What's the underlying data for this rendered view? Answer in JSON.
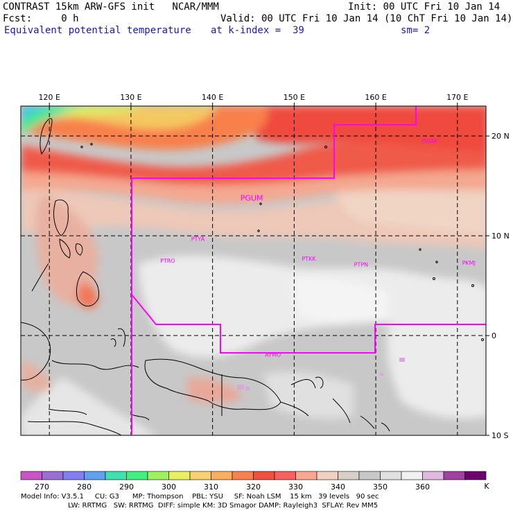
{
  "header": {
    "title": "CONTRAST 15km ARW-GFS init   NCAR/MMM",
    "init": "Init: 00 UTC Fri 10 Jan 14",
    "fcst": "Fcst:     0 h",
    "valid": "Valid: 00 UTC Fri 10 Jan 14 (10 ChT Fri 10 Jan 14)",
    "field": "Equivalent potential temperature",
    "level": "at k-index =  39",
    "smooth": "sm= 2"
  },
  "map": {
    "lon_labels": [
      "120 E",
      "130 E",
      "140 E",
      "150 E",
      "160 E",
      "170 E"
    ],
    "lon_values": [
      120,
      130,
      140,
      150,
      160,
      170
    ],
    "lat_labels": [
      "20 N",
      "10 N",
      "0",
      "10 S"
    ],
    "lat_values": [
      20,
      10,
      0,
      -10
    ],
    "extent": {
      "lon": [
        116.5,
        173.5
      ],
      "lat": [
        -10,
        23
      ]
    },
    "stations": [
      {
        "id": "PGUM",
        "lon": 144.8,
        "lat": 13.5,
        "big": true
      },
      {
        "id": "PWAK",
        "lon": 166.6,
        "lat": 19.3
      },
      {
        "id": "PTYA",
        "lon": 138.2,
        "lat": 9.5
      },
      {
        "id": "PTRO",
        "lon": 134.5,
        "lat": 7.3
      },
      {
        "id": "PTKK",
        "lon": 151.8,
        "lat": 7.5
      },
      {
        "id": "PTPN",
        "lon": 158.2,
        "lat": 6.9
      },
      {
        "id": "PKMJ",
        "lon": 171.4,
        "lat": 7.1
      },
      {
        "id": "AYMO",
        "lon": 147.4,
        "lat": -2.1
      }
    ],
    "boundary_color": "#ff00ff"
  },
  "colorbar": {
    "labels": [
      "270",
      "280",
      "290",
      "300",
      "310",
      "320",
      "330",
      "340",
      "350",
      "360"
    ],
    "unit": "K",
    "colors": [
      "#c855c8",
      "#9b6fd0",
      "#7f7ff0",
      "#5fa0f0",
      "#40e0b0",
      "#40f080",
      "#a0f060",
      "#e8f060",
      "#f8d070",
      "#f8b060",
      "#f88050",
      "#f05040",
      "#f86060",
      "#f8a890",
      "#f0d0c0",
      "#d8d0c8",
      "#c8c8c8",
      "#e0e0e0",
      "#f0f0f0",
      "#e0b8e0",
      "#a040a0",
      "#700070"
    ]
  },
  "footer": {
    "line1": "Model Info: V3.5.1     CU: G3      MP: Thompson    PBL: YSU     SF: Noah LSM    15 km   39 levels   90 sec",
    "line2": "LW: RRTMG   SW: RRTMG  DIFF: simple KM: 3D Smagor DAMP: Rayleigh3  SFLAY: Rev MM5"
  }
}
